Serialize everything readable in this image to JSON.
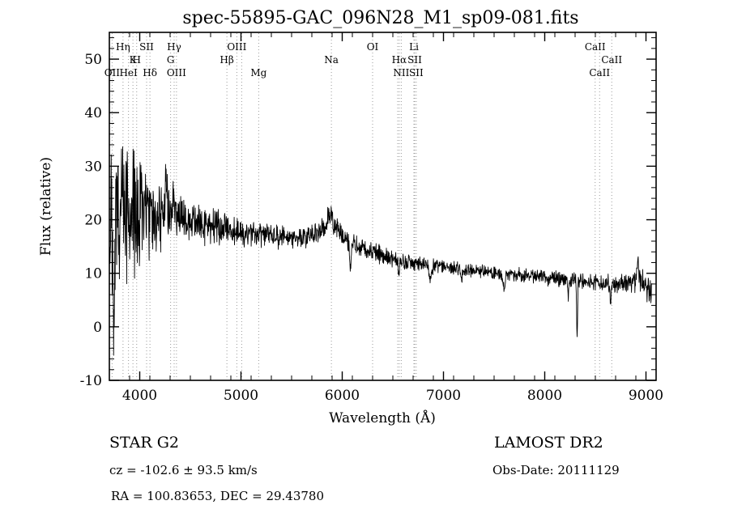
{
  "title": "spec-55895-GAC_096N28_M1_sp09-081.fits",
  "axes": {
    "xlabel": "Wavelength (Å)",
    "ylabel": "Flux (relative)",
    "x_range": [
      3700,
      9100
    ],
    "y_range": [
      -10,
      55
    ],
    "x_major_ticks": [
      4000,
      5000,
      6000,
      7000,
      8000,
      9000
    ],
    "x_minor_step": 200,
    "y_major_ticks": [
      -10,
      0,
      10,
      20,
      30,
      40,
      50
    ],
    "y_minor_step": 2
  },
  "spectral_lines": [
    {
      "wavelength": 3727,
      "label": "OII",
      "row": 3
    },
    {
      "wavelength": 3835,
      "label": "Hη",
      "row": 1
    },
    {
      "wavelength": 3889,
      "label": "HeI",
      "row": 3
    },
    {
      "wavelength": 3933,
      "label": "K",
      "row": 2
    },
    {
      "wavelength": 3970,
      "label": "H",
      "row": 2
    },
    {
      "wavelength": 4068,
      "label": "SII",
      "row": 1
    },
    {
      "wavelength": 4101,
      "label": "Hδ",
      "row": 3
    },
    {
      "wavelength": 4305,
      "label": "G",
      "row": 2
    },
    {
      "wavelength": 4340,
      "label": "Hγ",
      "row": 1
    },
    {
      "wavelength": 4363,
      "label": "OIII",
      "row": 3
    },
    {
      "wavelength": 4861,
      "label": "Hβ",
      "row": 2
    },
    {
      "wavelength": 4959,
      "label": "OIII",
      "row": 1
    },
    {
      "wavelength": 5007,
      "label": "",
      "row": 0
    },
    {
      "wavelength": 5175,
      "label": "Mg",
      "row": 3
    },
    {
      "wavelength": 5893,
      "label": "Na",
      "row": 2
    },
    {
      "wavelength": 6300,
      "label": "OI",
      "row": 1
    },
    {
      "wavelength": 6548,
      "label": "",
      "row": 0
    },
    {
      "wavelength": 6563,
      "label": "Hα",
      "row": 2
    },
    {
      "wavelength": 6583,
      "label": "NII",
      "row": 3
    },
    {
      "wavelength": 6708,
      "label": "Li",
      "row": 1
    },
    {
      "wavelength": 6716,
      "label": "SII",
      "row": 2
    },
    {
      "wavelength": 6731,
      "label": "SII",
      "row": 3
    },
    {
      "wavelength": 8498,
      "label": "CaII",
      "row": 1
    },
    {
      "wavelength": 8542,
      "label": "CaII",
      "row": 3
    },
    {
      "wavelength": 8662,
      "label": "CaII",
      "row": 2
    }
  ],
  "footer": {
    "star_class": "STAR   G2",
    "survey": "LAMOST DR2",
    "cz": "cz = -102.6 ± 93.5 km/s",
    "obs_date": "Obs-Date: 20111129",
    "ra_dec": "RA = 100.83653, DEC =  29.43780"
  },
  "chart_data": {
    "type": "line",
    "title": "spec-55895-GAC_096N28_M1_sp09-081.fits",
    "xlabel": "Wavelength (Å)",
    "ylabel": "Flux (relative)",
    "xlim": [
      3700,
      9100
    ],
    "ylim": [
      -10,
      55
    ],
    "legend": "none",
    "grid": "vertical dotted lines at spectral-line wavelengths only",
    "series_name": "relative flux",
    "note": "Noisy stellar (G2) spectrum. continuum_anchors = [wavelength, smoothed flux]; noise_amplitude_anchors = [wavelength, half-range of pixel noise]; features = localized deviations [center wavelength, delta flux, sigma].",
    "continuum_anchors": [
      [
        3700,
        18.0
      ],
      [
        3760,
        19.0
      ],
      [
        3820,
        21.0
      ],
      [
        3900,
        22.0
      ],
      [
        4000,
        22.5
      ],
      [
        4100,
        22.0
      ],
      [
        4200,
        21.0
      ],
      [
        4300,
        21.0
      ],
      [
        4400,
        20.0
      ],
      [
        4500,
        19.5
      ],
      [
        4700,
        19.0
      ],
      [
        4900,
        18.0
      ],
      [
        5100,
        17.5
      ],
      [
        5300,
        17.0
      ],
      [
        5500,
        16.5
      ],
      [
        5700,
        17.0
      ],
      [
        5850,
        19.0
      ],
      [
        5950,
        18.5
      ],
      [
        6050,
        16.5
      ],
      [
        6150,
        15.0
      ],
      [
        6300,
        14.0
      ],
      [
        6450,
        13.0
      ],
      [
        6600,
        12.2
      ],
      [
        6800,
        11.6
      ],
      [
        7000,
        11.2
      ],
      [
        7200,
        10.6
      ],
      [
        7400,
        10.2
      ],
      [
        7600,
        9.8
      ],
      [
        7800,
        9.6
      ],
      [
        8000,
        9.2
      ],
      [
        8200,
        8.8
      ],
      [
        8400,
        8.6
      ],
      [
        8600,
        8.2
      ],
      [
        8800,
        8.2
      ],
      [
        8950,
        8.5
      ],
      [
        9050,
        6.5
      ]
    ],
    "noise_amplitude_anchors": [
      [
        3700,
        15
      ],
      [
        3750,
        18
      ],
      [
        3850,
        18
      ],
      [
        3950,
        14
      ],
      [
        4050,
        11
      ],
      [
        4150,
        9
      ],
      [
        4250,
        7
      ],
      [
        4350,
        6
      ],
      [
        4500,
        5
      ],
      [
        4700,
        4
      ],
      [
        4900,
        3.2
      ],
      [
        5100,
        2.8
      ],
      [
        5400,
        2.4
      ],
      [
        5700,
        2.2
      ],
      [
        6000,
        2.2
      ],
      [
        6300,
        2
      ],
      [
        6600,
        1.8
      ],
      [
        7000,
        1.6
      ],
      [
        7400,
        1.5
      ],
      [
        7800,
        1.6
      ],
      [
        8200,
        1.8
      ],
      [
        8600,
        2
      ],
      [
        8900,
        2.4
      ],
      [
        9050,
        3.2
      ]
    ],
    "features": [
      [
        3745,
        -20,
        6
      ],
      [
        3815,
        15,
        5
      ],
      [
        4260,
        6,
        8
      ],
      [
        4330,
        6,
        5
      ],
      [
        5880,
        2.5,
        20
      ],
      [
        6080,
        -5,
        8
      ],
      [
        6560,
        -2.5,
        6
      ],
      [
        6870,
        -2.5,
        10
      ],
      [
        7180,
        -2,
        8
      ],
      [
        7600,
        -2.5,
        10
      ],
      [
        8230,
        -3,
        6
      ],
      [
        8320,
        -10.5,
        5
      ],
      [
        8650,
        -3.5,
        6
      ],
      [
        8920,
        5,
        6
      ]
    ],
    "flux_clip": [
      -5.5,
      41.5
    ],
    "noise_seed": 20111129,
    "sample_step": 3
  }
}
